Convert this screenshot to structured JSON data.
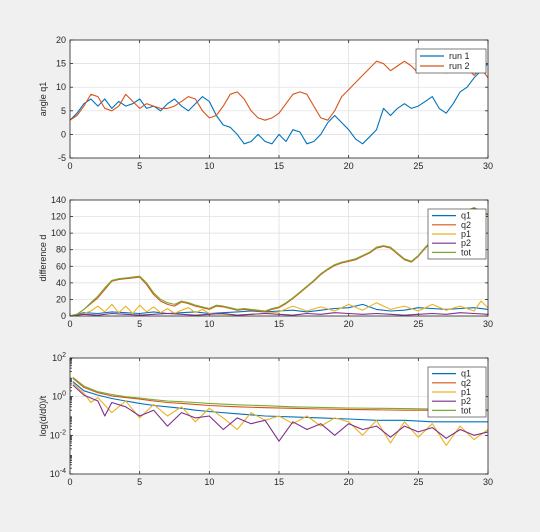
{
  "figure": {
    "background": "#f0f0f0"
  },
  "chart_data": [
    {
      "type": "line",
      "ylabel": "angle q1",
      "xlabel": "",
      "xlim": [
        0,
        30
      ],
      "ylim": [
        -5,
        20
      ],
      "yscale": "linear",
      "xticks": [
        "0",
        "5",
        "10",
        "15",
        "20",
        "25",
        "30"
      ],
      "yticks": [
        "-5",
        "0",
        "5",
        "10",
        "15",
        "20"
      ],
      "grid": true,
      "legend_position": "top-right",
      "series": [
        {
          "name": "run 1",
          "color": "#0072bd",
          "x": [
            0,
            0.5,
            1,
            1.5,
            2,
            2.5,
            3,
            3.5,
            4,
            4.5,
            5,
            5.5,
            6,
            6.5,
            7,
            7.5,
            8,
            8.5,
            9,
            9.5,
            10,
            10.5,
            11,
            11.5,
            12,
            12.5,
            13,
            13.5,
            14,
            14.5,
            15,
            15.5,
            16,
            16.5,
            17,
            17.5,
            18,
            18.5,
            19,
            19.5,
            20,
            20.5,
            21,
            21.5,
            22,
            22.5,
            23,
            23.5,
            24,
            24.5,
            25,
            25.5,
            26,
            26.5,
            27,
            27.5,
            28,
            28.5,
            29,
            29.5,
            30
          ],
          "y": [
            3,
            4.5,
            6.5,
            7.5,
            6,
            7.5,
            5.5,
            7,
            6,
            6.5,
            7.5,
            5.5,
            6,
            5,
            6.5,
            7.5,
            6,
            5,
            6.5,
            8,
            7,
            4,
            2,
            1.5,
            0,
            -2,
            -1.5,
            0,
            -1.5,
            -2,
            0,
            -1.5,
            1,
            0.5,
            -2,
            -1.5,
            0,
            2.5,
            4,
            2.5,
            1,
            -1,
            -2,
            -0.5,
            1,
            5.5,
            4,
            5.5,
            6.5,
            5.5,
            6,
            7,
            8,
            5.5,
            4.5,
            6.5,
            9,
            10,
            12,
            13.5,
            15
          ]
        },
        {
          "name": "run 2",
          "color": "#d95319",
          "x": [
            0,
            0.5,
            1,
            1.5,
            2,
            2.5,
            3,
            3.5,
            4,
            4.5,
            5,
            5.5,
            6,
            6.5,
            7,
            7.5,
            8,
            8.5,
            9,
            9.5,
            10,
            10.5,
            11,
            11.5,
            12,
            12.5,
            13,
            13.5,
            14,
            14.5,
            15,
            15.5,
            16,
            16.5,
            17,
            17.5,
            18,
            18.5,
            19,
            19.5,
            20,
            20.5,
            21,
            21.5,
            22,
            22.5,
            23,
            23.5,
            24,
            24.5,
            25,
            25.5,
            26,
            26.5,
            27,
            27.5,
            28,
            28.5,
            29,
            29.5,
            30
          ],
          "y": [
            3,
            4,
            6,
            8.5,
            8,
            5.5,
            5,
            6,
            8.5,
            7,
            5.5,
            6.5,
            6,
            5.5,
            5.5,
            6,
            7,
            8,
            7.5,
            5,
            3.5,
            4,
            6,
            8.5,
            9,
            7.5,
            5,
            3.5,
            3,
            3.5,
            4.5,
            6.5,
            8.5,
            9,
            8.5,
            6,
            3.5,
            3,
            5,
            8,
            9.5,
            11,
            12.5,
            14,
            15.5,
            15,
            13.5,
            14.5,
            15.5,
            14.5,
            13,
            14,
            15.5,
            14.5,
            13,
            14,
            15,
            14,
            12.5,
            14,
            12
          ]
        }
      ]
    },
    {
      "type": "line",
      "ylabel": "difference d",
      "xlabel": "",
      "xlim": [
        0,
        30
      ],
      "ylim": [
        0,
        140
      ],
      "yscale": "linear",
      "xticks": [
        "0",
        "5",
        "10",
        "15",
        "20",
        "25",
        "30"
      ],
      "yticks": [
        "0",
        "20",
        "40",
        "60",
        "80",
        "100",
        "120",
        "140"
      ],
      "grid": true,
      "legend_position": "top-right",
      "series": [
        {
          "name": "q1",
          "color": "#0072bd",
          "x": [
            0,
            1,
            2,
            3,
            4,
            5,
            6,
            7,
            8,
            9,
            10,
            11,
            12,
            13,
            14,
            15,
            16,
            17,
            18,
            19,
            20,
            21,
            22,
            23,
            24,
            25,
            26,
            27,
            28,
            29,
            30
          ],
          "y": [
            0,
            4,
            3,
            5,
            4,
            3,
            5,
            3,
            4,
            5,
            3,
            4,
            5,
            6,
            5,
            6,
            7,
            5,
            7,
            9,
            10,
            14,
            8,
            6,
            7,
            10,
            9,
            8,
            9,
            10,
            8
          ]
        },
        {
          "name": "q2",
          "color": "#d95319",
          "x": [
            0,
            0.5,
            1,
            1.5,
            2,
            2.5,
            3,
            3.5,
            4,
            4.5,
            5,
            5.5,
            6,
            6.5,
            7,
            7.5,
            8,
            8.5,
            9,
            9.5,
            10,
            10.5,
            11,
            11.5,
            12,
            12.5,
            13,
            13.5,
            14,
            14.5,
            15,
            15.5,
            16,
            16.5,
            17,
            17.5,
            18,
            18.5,
            19,
            19.5,
            20,
            20.5,
            21,
            21.5,
            22,
            22.5,
            23,
            23.5,
            24,
            24.5,
            25,
            25.5,
            26,
            26.5,
            27,
            27.5,
            28,
            28.5,
            29,
            29.5,
            30
          ],
          "y": [
            0,
            2,
            8,
            15,
            22,
            32,
            42,
            44,
            45,
            46,
            47,
            38,
            26,
            18,
            14,
            12,
            17,
            15,
            12,
            10,
            8,
            12,
            11,
            9,
            7,
            8,
            7,
            6,
            5,
            8,
            10,
            15,
            21,
            28,
            35,
            42,
            50,
            56,
            61,
            64,
            66,
            68,
            72,
            76,
            82,
            84,
            82,
            75,
            68,
            65,
            72,
            82,
            90,
            98,
            104,
            112,
            120,
            126,
            130,
            125,
            122
          ]
        },
        {
          "name": "p1",
          "color": "#edb120",
          "x": [
            0,
            1,
            1.5,
            2,
            2.5,
            3,
            3.5,
            4,
            4.5,
            5,
            5.5,
            6,
            6.5,
            7,
            7.5,
            8,
            8.5,
            9,
            9.5,
            10,
            11,
            12,
            13,
            14,
            15,
            16,
            17,
            18,
            19,
            20,
            21,
            22,
            23,
            24,
            25,
            26,
            27,
            28,
            29,
            29.5,
            30
          ],
          "y": [
            0,
            3,
            6,
            12,
            5,
            14,
            4,
            12,
            3,
            13,
            5,
            11,
            4,
            9,
            3,
            7,
            10,
            4,
            8,
            3,
            2,
            1,
            2,
            3,
            5,
            12,
            6,
            11,
            6,
            14,
            7,
            16,
            8,
            12,
            6,
            14,
            7,
            12,
            6,
            18,
            10
          ]
        },
        {
          "name": "p2",
          "color": "#7e2f8e",
          "x": [
            0,
            1,
            2,
            3,
            4,
            5,
            6,
            7,
            8,
            9,
            10,
            11,
            12,
            13,
            14,
            15,
            16,
            17,
            18,
            19,
            20,
            21,
            22,
            23,
            24,
            25,
            26,
            27,
            28,
            29,
            30
          ],
          "y": [
            0,
            2,
            1,
            3,
            2,
            1,
            2,
            3,
            2,
            1,
            2,
            3,
            1,
            2,
            3,
            2,
            1,
            3,
            2,
            4,
            3,
            2,
            3,
            2,
            1,
            2,
            3,
            2,
            4,
            3,
            2
          ]
        },
        {
          "name": "tot",
          "color": "#77ac30",
          "x": [
            0,
            0.5,
            1,
            1.5,
            2,
            2.5,
            3,
            3.5,
            4,
            4.5,
            5,
            5.5,
            6,
            6.5,
            7,
            7.5,
            8,
            8.5,
            9,
            9.5,
            10,
            10.5,
            11,
            11.5,
            12,
            12.5,
            13,
            13.5,
            14,
            14.5,
            15,
            15.5,
            16,
            16.5,
            17,
            17.5,
            18,
            18.5,
            19,
            19.5,
            20,
            20.5,
            21,
            21.5,
            22,
            22.5,
            23,
            23.5,
            24,
            24.5,
            25,
            25.5,
            26,
            26.5,
            27,
            27.5,
            28,
            28.5,
            29,
            29.5,
            30
          ],
          "y": [
            0,
            2,
            8,
            16,
            24,
            34,
            43,
            45,
            46,
            47,
            48,
            40,
            28,
            20,
            16,
            14,
            18,
            16,
            13,
            11,
            9,
            13,
            12,
            10,
            8,
            9,
            8,
            7,
            6,
            9,
            11,
            16,
            22,
            29,
            36,
            43,
            51,
            57,
            62,
            65,
            67,
            69,
            73,
            77,
            83,
            85,
            83,
            76,
            69,
            66,
            73,
            83,
            91,
            99,
            105,
            113,
            121,
            127,
            131,
            126,
            123
          ]
        }
      ]
    },
    {
      "type": "line",
      "ylabel": "log(d/d0)/t",
      "xlabel": "",
      "xlim": [
        0,
        30
      ],
      "ylim": [
        0.0001,
        100
      ],
      "yscale": "log",
      "xticks": [
        "0",
        "5",
        "10",
        "15",
        "20",
        "25",
        "30"
      ],
      "yticks": [
        "10-4",
        "10-2",
        "100",
        "102"
      ],
      "grid": true,
      "legend_position": "top-right",
      "series": [
        {
          "name": "q1",
          "color": "#0072bd",
          "x": [
            0.2,
            1,
            2,
            3,
            4,
            5,
            6,
            7,
            8,
            9,
            10,
            12,
            14,
            16,
            18,
            20,
            22,
            24,
            26,
            28,
            30
          ],
          "y": [
            6,
            2,
            1.2,
            0.8,
            0.6,
            0.45,
            0.35,
            0.3,
            0.25,
            0.2,
            0.17,
            0.13,
            0.1,
            0.09,
            0.08,
            0.07,
            0.06,
            0.06,
            0.05,
            0.05,
            0.05
          ]
        },
        {
          "name": "q2",
          "color": "#d95319",
          "x": [
            0.2,
            1,
            2,
            3,
            4,
            5,
            6,
            7,
            8,
            9,
            10,
            12,
            14,
            16,
            18,
            20,
            22,
            24,
            26,
            28,
            30
          ],
          "y": [
            9,
            3,
            1.6,
            1.1,
            0.9,
            0.75,
            0.6,
            0.5,
            0.45,
            0.4,
            0.35,
            0.3,
            0.27,
            0.25,
            0.23,
            0.22,
            0.21,
            0.2,
            0.2,
            0.2,
            0.19
          ]
        },
        {
          "name": "p1",
          "color": "#edb120",
          "x": [
            0.2,
            1,
            1.5,
            2,
            3,
            4,
            5,
            6,
            7,
            8,
            9,
            10,
            11,
            12,
            13,
            14,
            15,
            16,
            17,
            18,
            19,
            20,
            21,
            22,
            23,
            24,
            25,
            26,
            27,
            28,
            29,
            30
          ],
          "y": [
            5,
            1.5,
            0.5,
            0.9,
            0.15,
            0.6,
            0.08,
            0.4,
            0.1,
            0.3,
            0.05,
            0.25,
            0.08,
            0.02,
            0.15,
            0.06,
            0.1,
            0.04,
            0.1,
            0.03,
            0.08,
            0.05,
            0.01,
            0.06,
            0.004,
            0.05,
            0.008,
            0.04,
            0.003,
            0.03,
            0.006,
            0.02
          ]
        },
        {
          "name": "p2",
          "color": "#7e2f8e",
          "x": [
            0.2,
            1,
            2,
            2.5,
            3,
            4,
            5,
            6,
            7,
            8,
            9,
            10,
            11,
            12,
            13,
            14,
            15,
            16,
            17,
            18,
            19,
            20,
            21,
            22,
            23,
            24,
            25,
            26,
            27,
            28,
            29,
            30
          ],
          "y": [
            4,
            1.2,
            0.6,
            0.1,
            0.5,
            0.3,
            0.1,
            0.2,
            0.03,
            0.15,
            0.08,
            0.1,
            0.02,
            0.08,
            0.04,
            0.06,
            0.005,
            0.05,
            0.02,
            0.04,
            0.01,
            0.04,
            0.02,
            0.03,
            0.008,
            0.03,
            0.015,
            0.025,
            0.007,
            0.02,
            0.01,
            0.015
          ]
        },
        {
          "name": "tot",
          "color": "#77ac30",
          "x": [
            0.2,
            1,
            2,
            3,
            4,
            5,
            6,
            7,
            8,
            9,
            10,
            12,
            14,
            16,
            18,
            20,
            22,
            24,
            26,
            28,
            30
          ],
          "y": [
            10,
            3.5,
            1.8,
            1.3,
            1.0,
            0.85,
            0.7,
            0.6,
            0.55,
            0.5,
            0.45,
            0.38,
            0.34,
            0.3,
            0.28,
            0.26,
            0.25,
            0.24,
            0.23,
            0.22,
            0.21
          ]
        }
      ]
    }
  ]
}
